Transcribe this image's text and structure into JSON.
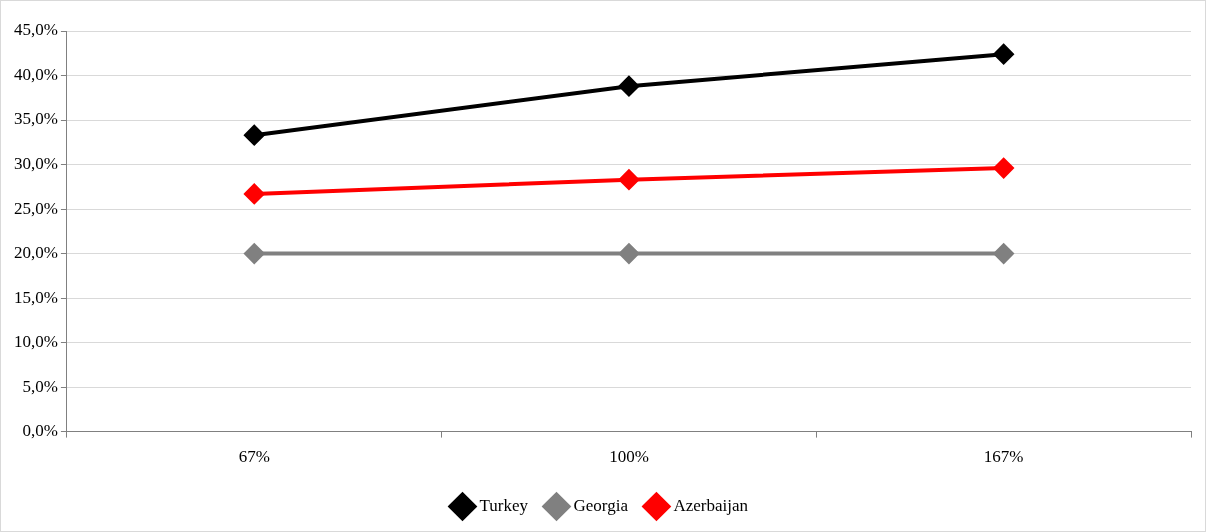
{
  "chart_data": {
    "type": "line",
    "categories": [
      "67%",
      "100%",
      "167%"
    ],
    "series": [
      {
        "name": "Turkey",
        "color": "#000000",
        "values": [
          33.3,
          38.8,
          42.4
        ]
      },
      {
        "name": "Georgia",
        "color": "#808080",
        "values": [
          20.0,
          20.0,
          20.0
        ]
      },
      {
        "name": "Azerbaijan",
        "color": "#ff0000",
        "values": [
          26.7,
          28.3,
          29.6
        ]
      }
    ],
    "ylim": [
      0,
      45
    ],
    "yticks": [
      {
        "value": 0,
        "label": "0,0%"
      },
      {
        "value": 5,
        "label": "5,0%"
      },
      {
        "value": 10,
        "label": "10,0%"
      },
      {
        "value": 15,
        "label": "15,0%"
      },
      {
        "value": 20,
        "label": "20,0%"
      },
      {
        "value": 25,
        "label": "25,0%"
      },
      {
        "value": 30,
        "label": "30,0%"
      },
      {
        "value": 35,
        "label": "35,0%"
      },
      {
        "value": 40,
        "label": "40,0%"
      },
      {
        "value": 45,
        "label": "45,0%"
      }
    ],
    "grid": "y",
    "legend": "bottom",
    "marker": "diamond",
    "line_style": "solid"
  }
}
